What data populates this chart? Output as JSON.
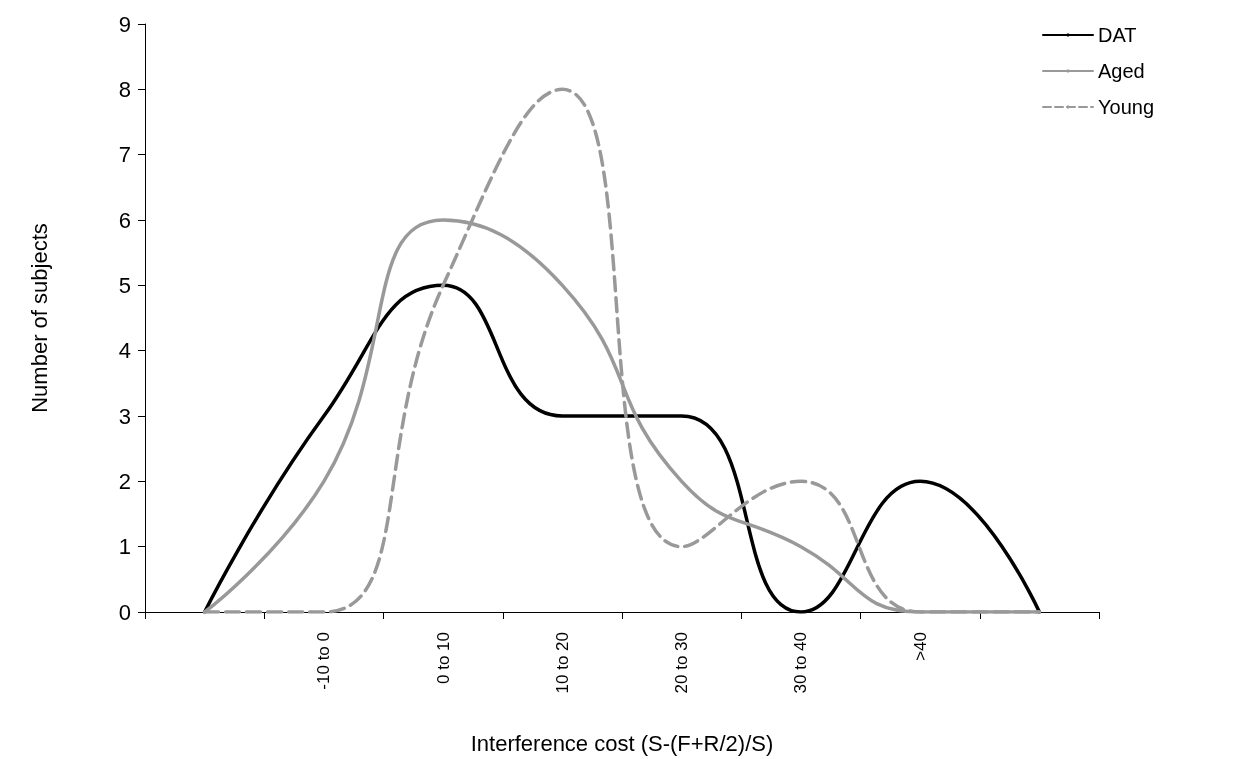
{
  "chart_data": {
    "type": "line",
    "xlabel": "Interference cost (S-(F+R/2)/S)",
    "ylabel": "Number of subjects",
    "categories": [
      null,
      "-10 to 0",
      "0 to 10",
      "10 to 20",
      "20 to 30",
      "30 to 40",
      ">40",
      null
    ],
    "series": [
      {
        "name": "DAT",
        "color": "#000000",
        "values": [
          0,
          3,
          5,
          3,
          3,
          0,
          2,
          0
        ]
      },
      {
        "name": "Aged",
        "color": "#999999",
        "values": [
          0,
          2,
          6,
          5,
          2,
          1,
          0,
          0
        ]
      },
      {
        "name": "Young",
        "color": "#999999",
        "line_style": "dashed",
        "values": [
          0,
          0,
          5,
          8,
          1,
          2,
          0,
          0
        ]
      }
    ],
    "ylim": [
      0,
      9
    ],
    "yticks": [
      0,
      1,
      2,
      3,
      4,
      5,
      6,
      7,
      8,
      9
    ],
    "grid": false,
    "legend": "top right",
    "marker": "none"
  }
}
